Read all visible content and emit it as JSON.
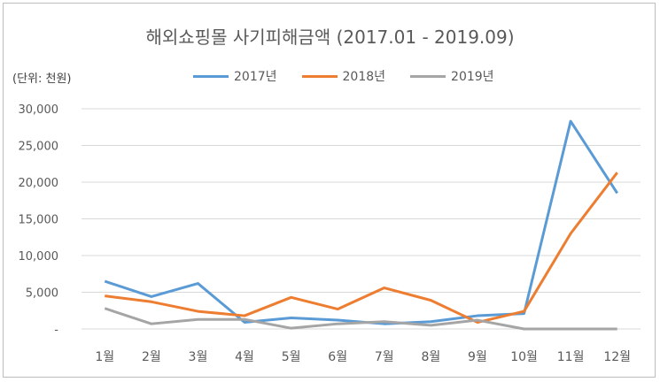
{
  "chart_data": {
    "type": "line",
    "title": "해외쇼핑몰 사기피해금액 (2017.01 - 2019.09)",
    "unit_label": "(단위: 천원)",
    "categories": [
      "1월",
      "2월",
      "3월",
      "4월",
      "5월",
      "6월",
      "7월",
      "8월",
      "9월",
      "10월",
      "11월",
      "12월"
    ],
    "y_tick_labels": [
      "-",
      "5,000",
      "10,000",
      "15,000",
      "20,000",
      "25,000",
      "30,000"
    ],
    "ylim": [
      0,
      30000
    ],
    "grid": true,
    "legend_position": "top",
    "series": [
      {
        "name": "2017년",
        "color": "#5b9bd5",
        "values": [
          6500,
          4400,
          6200,
          900,
          1500,
          1200,
          700,
          1000,
          1800,
          2100,
          28300,
          18500
        ]
      },
      {
        "name": "2018년",
        "color": "#ed7d31",
        "values": [
          4500,
          3700,
          2400,
          1800,
          4300,
          2700,
          5600,
          3900,
          900,
          2400,
          13000,
          21300
        ]
      },
      {
        "name": "2019년",
        "color": "#a5a5a5",
        "values": [
          2800,
          700,
          1300,
          1300,
          100,
          700,
          1000,
          500,
          1200,
          0,
          0,
          0
        ]
      }
    ]
  }
}
